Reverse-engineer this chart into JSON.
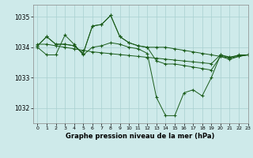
{
  "title": "Graphe pression niveau de la mer (hPa)",
  "bg_color": "#ceeaea",
  "grid_color": "#a8d0d0",
  "line_color": "#1a5c1a",
  "marker": "+",
  "xlim": [
    -0.5,
    23
  ],
  "ylim": [
    1031.5,
    1035.4
  ],
  "yticks": [
    1032,
    1033,
    1034,
    1035
  ],
  "xticks": [
    0,
    1,
    2,
    3,
    4,
    5,
    6,
    7,
    8,
    9,
    10,
    11,
    12,
    13,
    14,
    15,
    16,
    17,
    18,
    19,
    20,
    21,
    22,
    23
  ],
  "series": [
    [
      1034.0,
      1033.75,
      1033.75,
      1034.4,
      1034.1,
      1033.75,
      1034.0,
      1034.05,
      1034.15,
      1034.1,
      1034.0,
      1033.95,
      1033.8,
      1032.35,
      1031.75,
      1031.75,
      1032.5,
      1032.6,
      1032.4,
      1033.0,
      1033.75,
      1033.65,
      1033.7,
      1033.75
    ],
    [
      1034.05,
      1034.35,
      1034.1,
      1034.1,
      1034.05,
      1033.8,
      1034.7,
      1034.75,
      1035.05,
      1034.35,
      1034.15,
      1034.05,
      1034.0,
      1034.0,
      1034.0,
      1033.95,
      1033.9,
      1033.85,
      1033.8,
      1033.75,
      1033.7,
      1033.65,
      1033.75,
      1033.75
    ],
    [
      1034.05,
      1034.35,
      1034.1,
      1034.1,
      1034.05,
      1033.8,
      1034.7,
      1034.75,
      1035.05,
      1034.35,
      1034.15,
      1034.05,
      1034.0,
      1033.55,
      1033.45,
      1033.45,
      1033.4,
      1033.35,
      1033.3,
      1033.25,
      1033.7,
      1033.6,
      1033.7,
      1033.75
    ],
    [
      1034.1,
      1034.1,
      1034.05,
      1034.0,
      1033.95,
      1033.9,
      1033.85,
      1033.82,
      1033.79,
      1033.76,
      1033.73,
      1033.7,
      1033.67,
      1033.64,
      1033.61,
      1033.58,
      1033.55,
      1033.52,
      1033.49,
      1033.46,
      1033.75,
      1033.68,
      1033.73,
      1033.75
    ]
  ]
}
